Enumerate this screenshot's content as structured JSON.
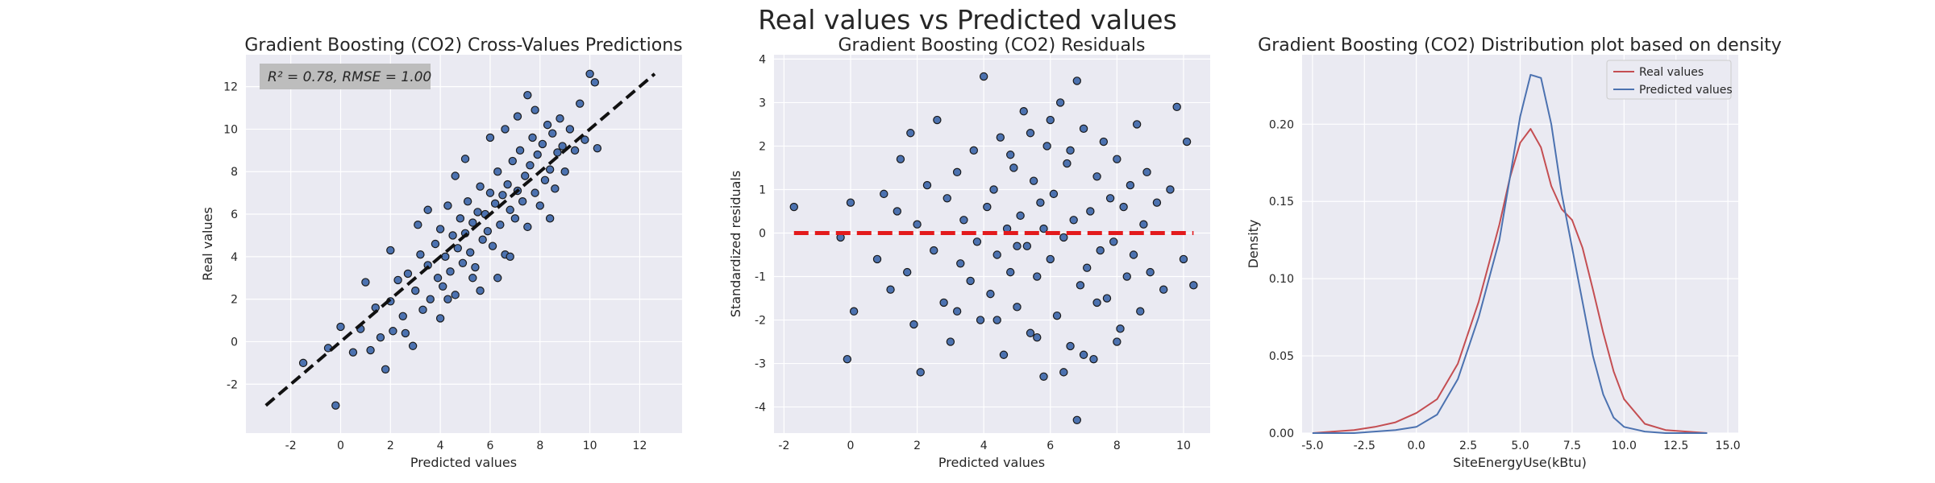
{
  "figure": {
    "suptitle": "Real values vs Predicted values"
  },
  "chart_data": [
    {
      "type": "scatter",
      "title": "Gradient Boosting (CO2) Cross-Values Predictions",
      "xlabel": "Predicted values",
      "ylabel": "Real values",
      "xlim": [
        -3.8,
        13.7
      ],
      "ylim": [
        -4.3,
        13.5
      ],
      "xticks": [
        -2,
        0,
        2,
        4,
        6,
        8,
        10,
        12
      ],
      "yticks": [
        -2,
        0,
        2,
        4,
        6,
        8,
        10,
        12
      ],
      "grid": true,
      "annotation": "R² = 0.78, RMSE = 1.00",
      "reference_line": {
        "style": "dashed",
        "color": "#111111",
        "from": [
          -3.0,
          -3.0
        ],
        "to": [
          12.6,
          12.6
        ]
      },
      "point_color": "#4c72b0",
      "points": [
        [
          -1.5,
          -1.0
        ],
        [
          -0.5,
          -0.3
        ],
        [
          -0.2,
          -3.0
        ],
        [
          0.0,
          0.7
        ],
        [
          0.5,
          -0.5
        ],
        [
          0.8,
          0.6
        ],
        [
          1.2,
          -0.4
        ],
        [
          1.4,
          1.6
        ],
        [
          1.6,
          0.2
        ],
        [
          1.8,
          -1.3
        ],
        [
          2.0,
          1.9
        ],
        [
          2.1,
          0.5
        ],
        [
          2.3,
          2.9
        ],
        [
          2.5,
          1.2
        ],
        [
          2.7,
          3.2
        ],
        [
          2.9,
          -0.2
        ],
        [
          3.0,
          2.4
        ],
        [
          3.2,
          4.1
        ],
        [
          3.3,
          1.5
        ],
        [
          3.5,
          3.6
        ],
        [
          3.6,
          2.0
        ],
        [
          3.8,
          4.6
        ],
        [
          3.9,
          3.0
        ],
        [
          4.0,
          5.3
        ],
        [
          4.1,
          2.6
        ],
        [
          4.2,
          4.0
        ],
        [
          4.3,
          6.4
        ],
        [
          4.4,
          3.3
        ],
        [
          4.5,
          5.0
        ],
        [
          4.6,
          2.2
        ],
        [
          4.7,
          4.4
        ],
        [
          4.8,
          5.8
        ],
        [
          4.9,
          3.7
        ],
        [
          5.0,
          5.1
        ],
        [
          5.1,
          6.6
        ],
        [
          5.2,
          4.2
        ],
        [
          5.3,
          5.6
        ],
        [
          5.4,
          3.5
        ],
        [
          5.5,
          6.1
        ],
        [
          5.6,
          7.3
        ],
        [
          5.7,
          4.8
        ],
        [
          5.8,
          6.0
        ],
        [
          5.9,
          5.2
        ],
        [
          6.0,
          7.0
        ],
        [
          6.1,
          4.5
        ],
        [
          6.2,
          6.5
        ],
        [
          6.3,
          8.0
        ],
        [
          6.4,
          5.5
        ],
        [
          6.5,
          6.9
        ],
        [
          6.6,
          4.1
        ],
        [
          6.7,
          7.4
        ],
        [
          6.8,
          6.2
        ],
        [
          6.9,
          8.5
        ],
        [
          7.0,
          5.8
        ],
        [
          7.1,
          7.1
        ],
        [
          7.2,
          9.0
        ],
        [
          7.3,
          6.6
        ],
        [
          7.4,
          7.8
        ],
        [
          7.5,
          5.4
        ],
        [
          7.6,
          8.3
        ],
        [
          7.7,
          9.6
        ],
        [
          7.8,
          7.0
        ],
        [
          7.9,
          8.8
        ],
        [
          8.0,
          6.4
        ],
        [
          8.1,
          9.3
        ],
        [
          8.2,
          7.6
        ],
        [
          8.3,
          10.2
        ],
        [
          8.4,
          8.1
        ],
        [
          8.5,
          9.8
        ],
        [
          8.6,
          7.2
        ],
        [
          8.7,
          8.9
        ],
        [
          8.8,
          10.5
        ],
        [
          8.9,
          9.2
        ],
        [
          9.0,
          8.0
        ],
        [
          9.2,
          10.0
        ],
        [
          9.4,
          9.0
        ],
        [
          9.6,
          11.2
        ],
        [
          9.8,
          9.5
        ],
        [
          10.0,
          12.6
        ],
        [
          10.2,
          12.2
        ],
        [
          10.3,
          9.1
        ],
        [
          6.3,
          3.0
        ],
        [
          7.8,
          10.9
        ],
        [
          5.0,
          8.6
        ],
        [
          3.5,
          6.2
        ],
        [
          2.0,
          4.3
        ],
        [
          4.0,
          1.1
        ],
        [
          5.6,
          2.4
        ],
        [
          6.8,
          4.0
        ],
        [
          8.4,
          5.8
        ],
        [
          4.6,
          7.8
        ],
        [
          7.1,
          10.6
        ],
        [
          3.1,
          5.5
        ],
        [
          6.0,
          9.6
        ],
        [
          2.6,
          0.4
        ],
        [
          5.3,
          3.0
        ],
        [
          1.0,
          2.8
        ],
        [
          7.5,
          11.6
        ],
        [
          6.6,
          10.0
        ],
        [
          4.3,
          2.0
        ]
      ]
    },
    {
      "type": "scatter",
      "title": "Gradient Boosting (CO2) Residuals",
      "xlabel": "Predicted values",
      "ylabel": "Standardized residuals",
      "xlim": [
        -2.3,
        10.8
      ],
      "ylim": [
        -4.6,
        4.1
      ],
      "xticks": [
        -2,
        0,
        2,
        4,
        6,
        8,
        10
      ],
      "yticks": [
        -4,
        -3,
        -2,
        -1,
        0,
        1,
        2,
        3,
        4
      ],
      "grid": true,
      "reference_line": {
        "style": "dashed",
        "color": "#e31a1c",
        "y": 0,
        "from_x": -1.7,
        "to_x": 10.3
      },
      "point_color": "#4c72b0",
      "points": [
        [
          -1.7,
          0.6
        ],
        [
          -0.3,
          -0.1
        ],
        [
          -0.1,
          -2.9
        ],
        [
          0.0,
          0.7
        ],
        [
          0.1,
          -1.8
        ],
        [
          0.8,
          -0.6
        ],
        [
          1.0,
          0.9
        ],
        [
          1.2,
          -1.3
        ],
        [
          1.4,
          0.5
        ],
        [
          1.5,
          1.7
        ],
        [
          1.7,
          -0.9
        ],
        [
          1.8,
          2.3
        ],
        [
          1.9,
          -2.1
        ],
        [
          2.0,
          0.2
        ],
        [
          2.1,
          -3.2
        ],
        [
          2.3,
          1.1
        ],
        [
          2.5,
          -0.4
        ],
        [
          2.6,
          2.6
        ],
        [
          2.8,
          -1.6
        ],
        [
          2.9,
          0.8
        ],
        [
          3.0,
          -2.5
        ],
        [
          3.2,
          1.4
        ],
        [
          3.3,
          -0.7
        ],
        [
          3.4,
          0.3
        ],
        [
          3.6,
          -1.1
        ],
        [
          3.7,
          1.9
        ],
        [
          3.8,
          -0.2
        ],
        [
          3.9,
          -2.0
        ],
        [
          4.0,
          3.6
        ],
        [
          4.1,
          0.6
        ],
        [
          4.2,
          -1.4
        ],
        [
          4.3,
          1.0
        ],
        [
          4.4,
          -0.5
        ],
        [
          4.5,
          2.2
        ],
        [
          4.6,
          -2.8
        ],
        [
          4.7,
          0.1
        ],
        [
          4.8,
          -0.9
        ],
        [
          4.9,
          1.5
        ],
        [
          5.0,
          -1.7
        ],
        [
          5.1,
          0.4
        ],
        [
          5.2,
          2.8
        ],
        [
          5.3,
          -0.3
        ],
        [
          5.4,
          -2.3
        ],
        [
          5.5,
          1.2
        ],
        [
          5.6,
          -1.0
        ],
        [
          5.7,
          0.7
        ],
        [
          5.8,
          -3.3
        ],
        [
          5.9,
          2.0
        ],
        [
          6.0,
          -0.6
        ],
        [
          6.1,
          0.9
        ],
        [
          6.2,
          -1.9
        ],
        [
          6.3,
          3.0
        ],
        [
          6.4,
          -0.1
        ],
        [
          6.5,
          1.6
        ],
        [
          6.6,
          -2.6
        ],
        [
          6.7,
          0.3
        ],
        [
          6.8,
          3.5
        ],
        [
          6.9,
          -1.2
        ],
        [
          7.0,
          2.4
        ],
        [
          7.1,
          -0.8
        ],
        [
          7.2,
          0.5
        ],
        [
          7.3,
          -2.9
        ],
        [
          7.4,
          1.3
        ],
        [
          7.5,
          -0.4
        ],
        [
          7.6,
          2.1
        ],
        [
          7.7,
          -1.5
        ],
        [
          7.8,
          0.8
        ],
        [
          7.9,
          -0.2
        ],
        [
          8.0,
          1.7
        ],
        [
          8.1,
          -2.2
        ],
        [
          8.2,
          0.6
        ],
        [
          8.3,
          -1.0
        ],
        [
          8.4,
          1.1
        ],
        [
          8.5,
          -0.5
        ],
        [
          8.6,
          2.5
        ],
        [
          8.7,
          -1.8
        ],
        [
          8.8,
          0.2
        ],
        [
          8.9,
          1.4
        ],
        [
          9.0,
          -0.9
        ],
        [
          9.2,
          0.7
        ],
        [
          9.4,
          -1.3
        ],
        [
          9.6,
          1.0
        ],
        [
          9.8,
          2.9
        ],
        [
          10.0,
          -0.6
        ],
        [
          10.1,
          2.1
        ],
        [
          10.3,
          -1.2
        ],
        [
          6.8,
          -4.3
        ],
        [
          6.4,
          -3.2
        ],
        [
          4.4,
          -2.0
        ],
        [
          5.6,
          -2.4
        ],
        [
          7.0,
          -2.8
        ],
        [
          5.4,
          2.3
        ],
        [
          6.0,
          2.6
        ],
        [
          8.0,
          -2.5
        ],
        [
          3.2,
          -1.8
        ],
        [
          4.8,
          1.8
        ],
        [
          6.6,
          1.9
        ],
        [
          7.4,
          -1.6
        ],
        [
          5.0,
          -0.3
        ],
        [
          5.8,
          0.1
        ]
      ]
    },
    {
      "type": "line",
      "title": "Gradient Boosting (CO2) Distribution plot based on density",
      "xlabel": "SiteEnergyUse(kBtu)",
      "ylabel": "Density",
      "xlim": [
        -5.5,
        15.5
      ],
      "ylim": [
        0,
        0.245
      ],
      "xticks": [
        -5.0,
        -2.5,
        0.0,
        2.5,
        5.0,
        7.5,
        10.0,
        12.5,
        15.0
      ],
      "yticks": [
        0.0,
        0.05,
        0.1,
        0.15,
        0.2
      ],
      "grid": true,
      "legend_position": "top-right",
      "x": [
        -5.0,
        -4.0,
        -3.0,
        -2.0,
        -1.0,
        0.0,
        1.0,
        2.0,
        3.0,
        4.0,
        4.5,
        5.0,
        5.5,
        6.0,
        6.5,
        7.0,
        7.5,
        8.0,
        8.5,
        9.0,
        9.5,
        10.0,
        11.0,
        12.0,
        13.0,
        14.0
      ],
      "series": [
        {
          "name": "Real values",
          "color": "#c44e52",
          "values": [
            0.0,
            0.001,
            0.002,
            0.004,
            0.007,
            0.013,
            0.022,
            0.045,
            0.085,
            0.135,
            0.165,
            0.188,
            0.197,
            0.185,
            0.16,
            0.145,
            0.138,
            0.12,
            0.093,
            0.065,
            0.04,
            0.022,
            0.006,
            0.002,
            0.001,
            0.0
          ]
        },
        {
          "name": "Predicted values",
          "color": "#4c72b0",
          "values": [
            0.0,
            0.0,
            0.0,
            0.001,
            0.002,
            0.004,
            0.012,
            0.035,
            0.075,
            0.125,
            0.165,
            0.205,
            0.232,
            0.23,
            0.2,
            0.155,
            0.12,
            0.085,
            0.05,
            0.025,
            0.01,
            0.004,
            0.001,
            0.0,
            0.0,
            0.0
          ]
        }
      ]
    }
  ]
}
